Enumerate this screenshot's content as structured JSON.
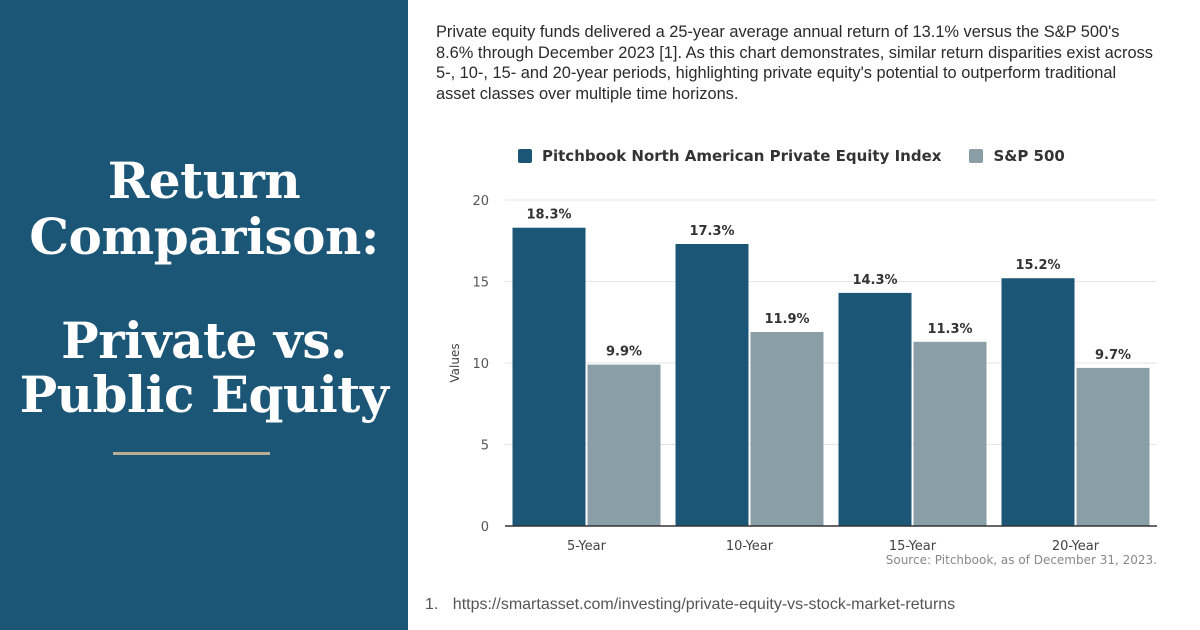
{
  "title": {
    "line1": "Return",
    "line2": "Comparison:",
    "line3": "Private vs.",
    "line4": "Public Equity"
  },
  "intro": "Private equity funds delivered a 25-year average annual return of 13.1% versus the S&P 500's 8.6% through December 2023 [1]. As this chart demonstrates, similar return disparities exist across 5-, 10-, 15- and 20-year periods, highlighting private equity's potential to outperform traditional asset classes over multiple time horizons.",
  "colors": {
    "panel": "#1b5677",
    "divider": "#b9ad92",
    "series1": "#1b5677",
    "series2": "#899ea7"
  },
  "chart_data": {
    "type": "bar",
    "categories": [
      "5-Year",
      "10-Year",
      "15-Year",
      "20-Year"
    ],
    "series": [
      {
        "name": "Pitchbook North American Private Equity Index",
        "values": [
          18.3,
          17.3,
          14.3,
          15.2
        ],
        "labels": [
          "18.3%",
          "17.3%",
          "14.3%",
          "15.2%"
        ]
      },
      {
        "name": "S&P 500",
        "values": [
          9.9,
          11.9,
          11.3,
          9.7
        ],
        "labels": [
          "9.9%",
          "11.9%",
          "11.3%",
          "9.7%"
        ]
      }
    ],
    "ylabel": "Values",
    "ylim": [
      0,
      20
    ],
    "yticks": [
      0,
      5,
      10,
      15,
      20
    ],
    "grid": true,
    "legend_position": "top",
    "source": "Source: Pitchbook, as of December 31, 2023."
  },
  "footnote": {
    "number": "1.",
    "url": "https://smartasset.com/investing/private-equity-vs-stock-market-returns"
  }
}
